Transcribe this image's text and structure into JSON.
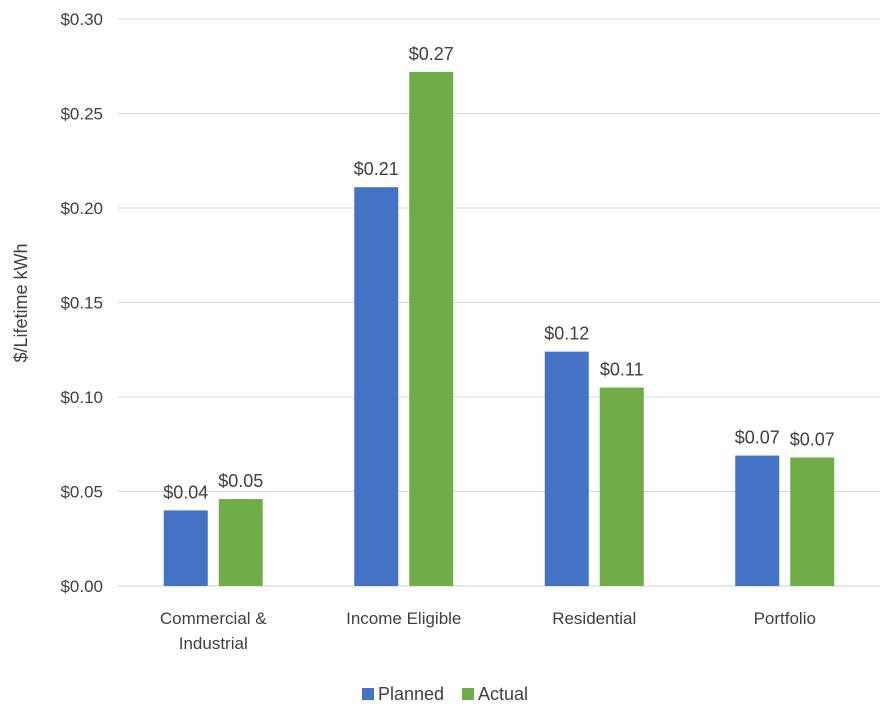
{
  "chart_data": {
    "type": "bar",
    "title": "",
    "xlabel": "",
    "ylabel": "$/Lifetime kWh",
    "ylim": [
      0,
      0.3
    ],
    "yticks": [
      "$0.00",
      "$0.05",
      "$0.10",
      "$0.15",
      "$0.20",
      "$0.25",
      "$0.30"
    ],
    "grid": true,
    "legend_position": "bottom",
    "categories": [
      [
        "Commercial &",
        "Industrial"
      ],
      [
        "Income Eligible"
      ],
      [
        "Residential"
      ],
      [
        "Portfolio"
      ]
    ],
    "series": [
      {
        "name": "Planned",
        "color": "#4472C4",
        "values": [
          0.04,
          0.211,
          0.124,
          0.069
        ],
        "labels": [
          "$0.04",
          "$0.21",
          "$0.12",
          "$0.07"
        ]
      },
      {
        "name": "Actual",
        "color": "#70AD47",
        "values": [
          0.046,
          0.272,
          0.105,
          0.068
        ],
        "labels": [
          "$0.05",
          "$0.27",
          "$0.11",
          "$0.07"
        ]
      }
    ]
  }
}
